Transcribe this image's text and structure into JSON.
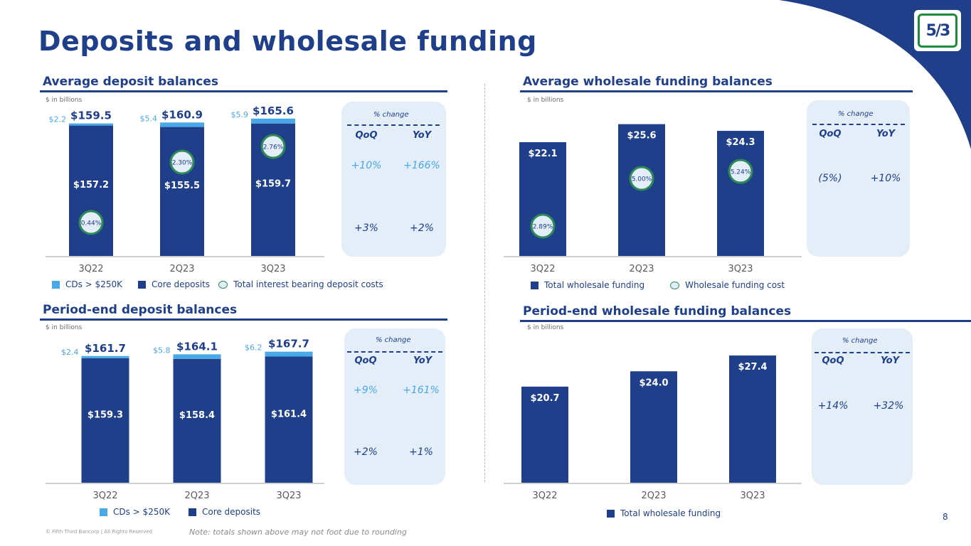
{
  "page": {
    "title": "Deposits and wholesale funding",
    "page_number": "8",
    "copyright": "© Fifth Third Bancorp | All Rights Reserved",
    "note": "Note: totals shown above may not foot due to rounding",
    "logo_text": "5/3"
  },
  "colors": {
    "primary": "#1f3f8a",
    "light": "#48a8e8",
    "green": "#2e8b57",
    "panel": "#e3eef9"
  },
  "sections": {
    "avg_deposits": {
      "title": "Average deposit balances",
      "units": "$ in billions",
      "pct": {
        "header": "% change",
        "col1": "QoQ",
        "col2": "YoY",
        "row1": [
          "+10%",
          "+166%"
        ],
        "row2": [
          "+3%",
          "+2%"
        ]
      },
      "legend": [
        "CDs > $250K",
        "Core deposits",
        "Total interest bearing deposit costs"
      ]
    },
    "avg_wholesale": {
      "title": "Average wholesale funding balances",
      "units": "$ in billions",
      "pct": {
        "header": "% change",
        "col1": "QoQ",
        "col2": "YoY",
        "row1": [
          "(5%)",
          "+10%"
        ]
      },
      "legend": [
        "Total wholesale funding",
        "Wholesale funding cost"
      ]
    },
    "pe_deposits": {
      "title": "Period-end deposit balances",
      "units": "$ in billions",
      "pct": {
        "header": "% change",
        "col1": "QoQ",
        "col2": "YoY",
        "row1": [
          "+9%",
          "+161%"
        ],
        "row2": [
          "+2%",
          "+1%"
        ]
      },
      "legend": [
        "CDs > $250K",
        "Core deposits"
      ]
    },
    "pe_wholesale": {
      "title": "Period-end wholesale funding balances",
      "units": "$ in billions",
      "pct": {
        "header": "% change",
        "col1": "QoQ",
        "col2": "YoY",
        "row1": [
          "+14%",
          "+32%"
        ]
      },
      "legend": [
        "Total wholesale funding"
      ]
    }
  },
  "chart_data": [
    {
      "id": "avg_deposits",
      "type": "bar",
      "stacked": true,
      "title": "Average deposit balances",
      "ylabel": "$ in billions",
      "categories": [
        "3Q22",
        "2Q23",
        "3Q23"
      ],
      "series": [
        {
          "name": "Core deposits",
          "values": [
            157.2,
            155.5,
            159.7
          ],
          "labels": [
            "$157.2",
            "$155.5",
            "$159.7"
          ]
        },
        {
          "name": "CDs > $250K",
          "values": [
            2.2,
            5.4,
            5.9
          ],
          "labels": [
            "$2.2",
            "$5.4",
            "$5.9"
          ]
        }
      ],
      "totals": [
        "$159.5",
        "$160.9",
        "$165.6"
      ],
      "cost_series": {
        "name": "Total interest bearing deposit costs",
        "values": [
          0.44,
          2.3,
          2.76
        ],
        "labels": [
          "0.44%",
          "2.30%",
          "2.76%"
        ]
      }
    },
    {
      "id": "avg_wholesale",
      "type": "bar",
      "title": "Average wholesale funding balances",
      "ylabel": "$ in billions",
      "categories": [
        "3Q22",
        "2Q23",
        "3Q23"
      ],
      "series": [
        {
          "name": "Total wholesale funding",
          "values": [
            22.1,
            25.6,
            24.3
          ],
          "labels": [
            "$22.1",
            "$25.6",
            "$24.3"
          ]
        }
      ],
      "cost_series": {
        "name": "Wholesale funding cost",
        "values": [
          2.89,
          5.0,
          5.24
        ],
        "labels": [
          "2.89%",
          "5.00%",
          "5.24%"
        ]
      }
    },
    {
      "id": "pe_deposits",
      "type": "bar",
      "stacked": true,
      "title": "Period-end deposit balances",
      "ylabel": "$ in billions",
      "categories": [
        "3Q22",
        "2Q23",
        "3Q23"
      ],
      "series": [
        {
          "name": "Core deposits",
          "values": [
            159.3,
            158.4,
            161.4
          ],
          "labels": [
            "$159.3",
            "$158.4",
            "$161.4"
          ]
        },
        {
          "name": "CDs > $250K",
          "values": [
            2.4,
            5.8,
            6.2
          ],
          "labels": [
            "$2.4",
            "$5.8",
            "$6.2"
          ]
        }
      ],
      "totals": [
        "$161.7",
        "$164.1",
        "$167.7"
      ]
    },
    {
      "id": "pe_wholesale",
      "type": "bar",
      "title": "Period-end wholesale funding balances",
      "ylabel": "$ in billions",
      "categories": [
        "3Q22",
        "2Q23",
        "3Q23"
      ],
      "series": [
        {
          "name": "Total wholesale funding",
          "values": [
            20.7,
            24.0,
            27.4
          ],
          "labels": [
            "$20.7",
            "$24.0",
            "$27.4"
          ]
        }
      ]
    }
  ]
}
